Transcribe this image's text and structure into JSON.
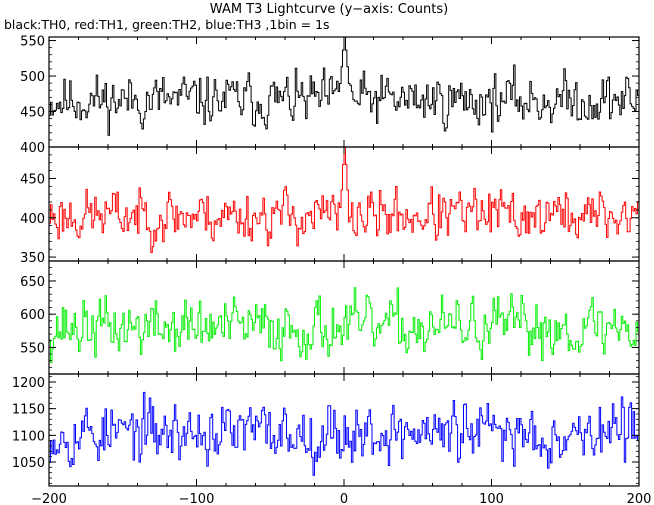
{
  "title": "WAM T3 Lightcurve (y−axis: Counts)",
  "subtitle": "black:TH0, red:TH1, green:TH2, blue:TH3 ,1bin = 1s",
  "chart_data": {
    "type": "line",
    "x_range": [
      -200,
      200
    ],
    "x_ticks": [
      -200,
      -100,
      0,
      100,
      200
    ],
    "x_tick_labels": [
      "−200",
      "−100",
      "0",
      "100",
      "200"
    ],
    "panels": [
      {
        "name": "TH0",
        "color": "#000000",
        "ylim": [
          400,
          555
        ],
        "y_ticks": [
          400,
          450,
          500,
          550
        ],
        "baseline": 466,
        "noise": 24,
        "spike": {
          "x": 0,
          "peak": 560,
          "width": 3
        },
        "seed": 11
      },
      {
        "name": "TH1",
        "color": "#ff0000",
        "ylim": [
          345,
          490
        ],
        "y_ticks": [
          350,
          400,
          450
        ],
        "baseline": 403,
        "noise": 22,
        "spike": {
          "x": 0,
          "peak": 500,
          "width": 2
        },
        "seed": 23
      },
      {
        "name": "TH2",
        "color": "#00ee00",
        "ylim": [
          510,
          680
        ],
        "y_ticks": [
          550,
          600,
          650
        ],
        "baseline": 580,
        "noise": 29,
        "spike": null,
        "seed": 37
      },
      {
        "name": "TH3",
        "color": "#0000ff",
        "ylim": [
          1005,
          1215
        ],
        "y_ticks": [
          1050,
          1100,
          1150,
          1200
        ],
        "baseline": 1105,
        "noise": 38,
        "spike": null,
        "seed": 53
      }
    ]
  }
}
